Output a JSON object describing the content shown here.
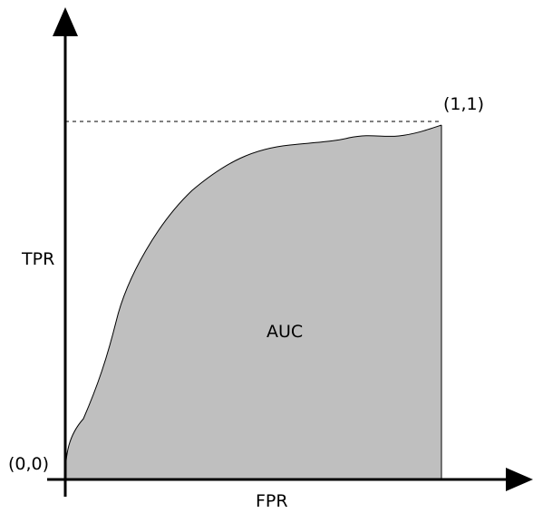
{
  "diagram": {
    "x_axis_label": "FPR",
    "y_axis_label": "TPR",
    "area_label": "AUC",
    "origin_label": "(0,0)",
    "end_point_label": "(1,1)"
  },
  "colors": {
    "area_fill": "#bfbfbf",
    "axis": "#000000",
    "curve": "#000000",
    "dashed_guide": "#000000",
    "background": "#ffffff"
  }
}
